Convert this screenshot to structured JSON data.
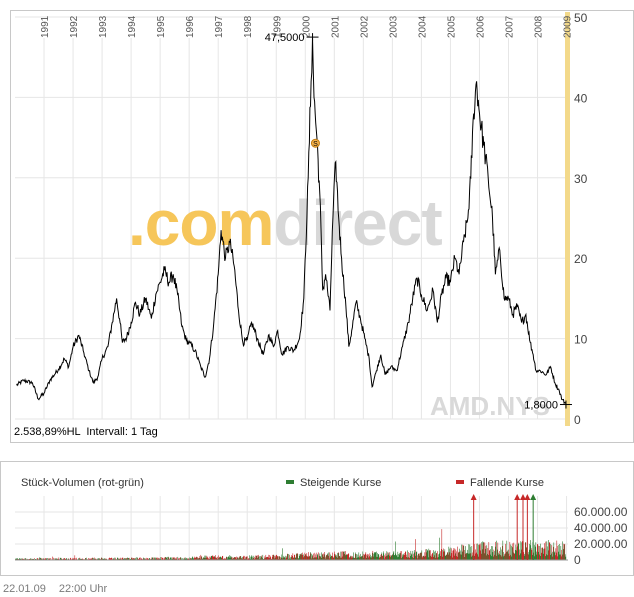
{
  "watermark": ".comdirect",
  "ticker_label": "AMD.NYS",
  "stats_text": "2.538,89%HL  Intervall: 1 Tag",
  "footer": {
    "date": "22.01.09",
    "time": "22:00 Uhr"
  },
  "colors": {
    "price_line": "#000000",
    "grid": "#e6e6e6",
    "highlight_band": "#f3d98a",
    "watermark_orange": "#f6c65a",
    "watermark_gray": "#d8d8d8",
    "rising": "#2e7d32",
    "falling": "#c62828",
    "stats_text": "#8c8c8c"
  },
  "chart_data": [
    {
      "type": "line",
      "x_tick_labels": [
        "1991",
        "1992",
        "1993",
        "1994",
        "1995",
        "1996",
        "1997",
        "1998",
        "1999",
        "2000",
        "2001",
        "2002",
        "2003",
        "2004",
        "2005",
        "2006",
        "2007",
        "2008",
        "2009"
      ],
      "xlim": [
        1990.0,
        2009.05
      ],
      "ylim": [
        0,
        50
      ],
      "y_ticks": [
        0,
        10,
        20,
        30,
        40,
        50
      ],
      "grid": true,
      "annotations": [
        {
          "label": "47,5000",
          "x": 2000.25,
          "y": 47.5
        },
        {
          "label": "1,8000",
          "x": 2008.98,
          "y": 1.8
        }
      ],
      "events": [
        {
          "marker": "S",
          "x": 2000.35,
          "y": 34.3
        }
      ],
      "series": [
        {
          "points": [
            [
              1990.05,
              4.2
            ],
            [
              1990.3,
              4.8
            ],
            [
              1990.6,
              4.5
            ],
            [
              1990.8,
              2.5
            ],
            [
              1991.0,
              3.2
            ],
            [
              1991.2,
              4.8
            ],
            [
              1991.5,
              6.2
            ],
            [
              1991.7,
              7.5
            ],
            [
              1991.85,
              6.5
            ],
            [
              1992.0,
              9.0
            ],
            [
              1992.2,
              10.4
            ],
            [
              1992.35,
              8.5
            ],
            [
              1992.55,
              6.0
            ],
            [
              1992.7,
              4.5
            ],
            [
              1992.85,
              5.2
            ],
            [
              1993.0,
              7.5
            ],
            [
              1993.2,
              9.0
            ],
            [
              1993.35,
              12.0
            ],
            [
              1993.5,
              15.0
            ],
            [
              1993.6,
              12.5
            ],
            [
              1993.7,
              9.5
            ],
            [
              1993.85,
              10.2
            ],
            [
              1994.0,
              12.0
            ],
            [
              1994.15,
              14.5
            ],
            [
              1994.3,
              13.0
            ],
            [
              1994.5,
              15.0
            ],
            [
              1994.7,
              12.5
            ],
            [
              1994.85,
              15.5
            ],
            [
              1995.0,
              17.0
            ],
            [
              1995.15,
              18.5
            ],
            [
              1995.3,
              17.0
            ],
            [
              1995.45,
              18.0
            ],
            [
              1995.6,
              15.5
            ],
            [
              1995.75,
              11.5
            ],
            [
              1995.9,
              9.8
            ],
            [
              1996.0,
              9.5
            ],
            [
              1996.2,
              8.5
            ],
            [
              1996.4,
              6.5
            ],
            [
              1996.55,
              5.2
            ],
            [
              1996.7,
              7.5
            ],
            [
              1996.85,
              12.0
            ],
            [
              1997.0,
              18.0
            ],
            [
              1997.1,
              23.5
            ],
            [
              1997.25,
              20.0
            ],
            [
              1997.4,
              22.0
            ],
            [
              1997.55,
              19.0
            ],
            [
              1997.7,
              13.5
            ],
            [
              1997.85,
              9.5
            ],
            [
              1998.0,
              9.8
            ],
            [
              1998.15,
              12.0
            ],
            [
              1998.35,
              10.0
            ],
            [
              1998.55,
              8.0
            ],
            [
              1998.75,
              10.5
            ],
            [
              1998.9,
              9.0
            ],
            [
              1999.05,
              11.0
            ],
            [
              1999.2,
              8.0
            ],
            [
              1999.4,
              9.0
            ],
            [
              1999.6,
              8.5
            ],
            [
              1999.8,
              10.0
            ],
            [
              1999.95,
              15.0
            ],
            [
              2000.1,
              30.0
            ],
            [
              2000.2,
              42.0
            ],
            [
              2000.25,
              47.5
            ],
            [
              2000.3,
              40.0
            ],
            [
              2000.4,
              35.0
            ],
            [
              2000.5,
              28.0
            ],
            [
              2000.6,
              16.0
            ],
            [
              2000.7,
              18.0
            ],
            [
              2000.85,
              13.5
            ],
            [
              2000.95,
              25.0
            ],
            [
              2001.05,
              32.0
            ],
            [
              2001.15,
              25.0
            ],
            [
              2001.25,
              20.0
            ],
            [
              2001.4,
              14.0
            ],
            [
              2001.5,
              9.0
            ],
            [
              2001.6,
              11.0
            ],
            [
              2001.75,
              14.5
            ],
            [
              2001.9,
              12.5
            ],
            [
              2002.05,
              10.0
            ],
            [
              2002.2,
              7.5
            ],
            [
              2002.3,
              4.0
            ],
            [
              2002.45,
              6.0
            ],
            [
              2002.6,
              8.0
            ],
            [
              2002.75,
              5.5
            ],
            [
              2002.95,
              6.5
            ],
            [
              2003.15,
              6.0
            ],
            [
              2003.35,
              9.0
            ],
            [
              2003.55,
              12.0
            ],
            [
              2003.7,
              15.0
            ],
            [
              2003.85,
              17.5
            ],
            [
              2004.0,
              15.5
            ],
            [
              2004.2,
              13.5
            ],
            [
              2004.4,
              16.0
            ],
            [
              2004.55,
              12.0
            ],
            [
              2004.7,
              15.5
            ],
            [
              2004.85,
              17.5
            ],
            [
              2005.0,
              17.0
            ],
            [
              2005.15,
              20.0
            ],
            [
              2005.3,
              18.0
            ],
            [
              2005.45,
              22.0
            ],
            [
              2005.6,
              25.0
            ],
            [
              2005.7,
              30.0
            ],
            [
              2005.8,
              38.0
            ],
            [
              2005.9,
              42.0
            ],
            [
              2006.0,
              38.0
            ],
            [
              2006.15,
              34.0
            ],
            [
              2006.3,
              30.0
            ],
            [
              2006.45,
              25.0
            ],
            [
              2006.55,
              18.0
            ],
            [
              2006.7,
              21.0
            ],
            [
              2006.85,
              15.0
            ],
            [
              2007.0,
              15.0
            ],
            [
              2007.15,
              13.0
            ],
            [
              2007.3,
              14.0
            ],
            [
              2007.45,
              12.0
            ],
            [
              2007.6,
              13.0
            ],
            [
              2007.75,
              9.5
            ],
            [
              2007.85,
              8.0
            ],
            [
              2007.95,
              6.0
            ],
            [
              2008.1,
              6.0
            ],
            [
              2008.3,
              5.5
            ],
            [
              2008.45,
              6.5
            ],
            [
              2008.6,
              4.5
            ],
            [
              2008.75,
              3.5
            ],
            [
              2008.85,
              2.4
            ],
            [
              2008.98,
              1.9
            ]
          ]
        }
      ]
    },
    {
      "type": "bar",
      "title": "Stück-Volumen (rot-grün)",
      "legend": [
        {
          "name": "Steigende Kurse",
          "color": "#2e7d32"
        },
        {
          "name": "Fallende Kurse",
          "color": "#c62828"
        }
      ],
      "ylim": [
        0,
        80000
      ],
      "y_ticks": [
        0,
        20000,
        40000,
        60000
      ],
      "y_tick_labels": [
        "0",
        "20.000.00",
        "40.000.00",
        "60.000.00"
      ],
      "volume_profile": [
        [
          1990.0,
          1600
        ],
        [
          1992.0,
          1900
        ],
        [
          1994.0,
          2200
        ],
        [
          1996.0,
          2800
        ],
        [
          1997.0,
          4200
        ],
        [
          1998.0,
          4000
        ],
        [
          1999.0,
          4500
        ],
        [
          2000.0,
          6500
        ],
        [
          2001.0,
          7000
        ],
        [
          2002.0,
          7500
        ],
        [
          2003.0,
          7200
        ],
        [
          2004.0,
          8500
        ],
        [
          2005.0,
          11000
        ],
        [
          2006.0,
          15000
        ],
        [
          2007.0,
          16000
        ],
        [
          2008.0,
          17000
        ],
        [
          2009.05,
          15000
        ]
      ],
      "overflow_markers": [
        {
          "x": 2005.8,
          "color": "#c62828"
        },
        {
          "x": 2007.3,
          "color": "#c62828"
        },
        {
          "x": 2007.5,
          "color": "#c62828"
        },
        {
          "x": 2007.65,
          "color": "#c62828"
        },
        {
          "x": 2007.85,
          "color": "#2e7d32"
        }
      ]
    }
  ]
}
